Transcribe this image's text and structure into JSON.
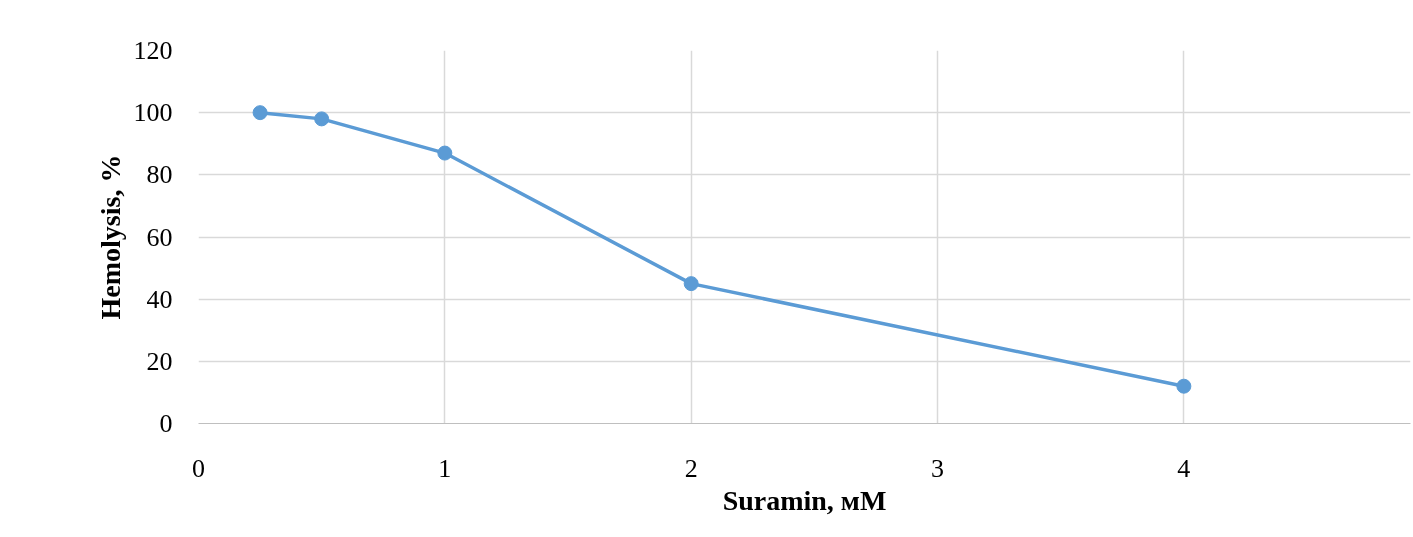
{
  "chart_data": {
    "type": "line",
    "xlabel": "Suramin, мМ",
    "ylabel": "Hemolysis, %",
    "x": [
      0.25,
      0.5,
      1,
      2,
      4
    ],
    "series": [
      {
        "color": "#5b9bd5",
        "values": [
          100,
          98,
          87,
          45,
          12
        ]
      }
    ],
    "xlim": [
      0,
      4.92
    ],
    "xticks": [
      0,
      1,
      2,
      3,
      4
    ],
    "ylim": [
      0,
      120
    ],
    "yticks": [
      0,
      20,
      40,
      60,
      80,
      100,
      120
    ],
    "grid": true,
    "marker": "circle",
    "line_style": "solid"
  }
}
